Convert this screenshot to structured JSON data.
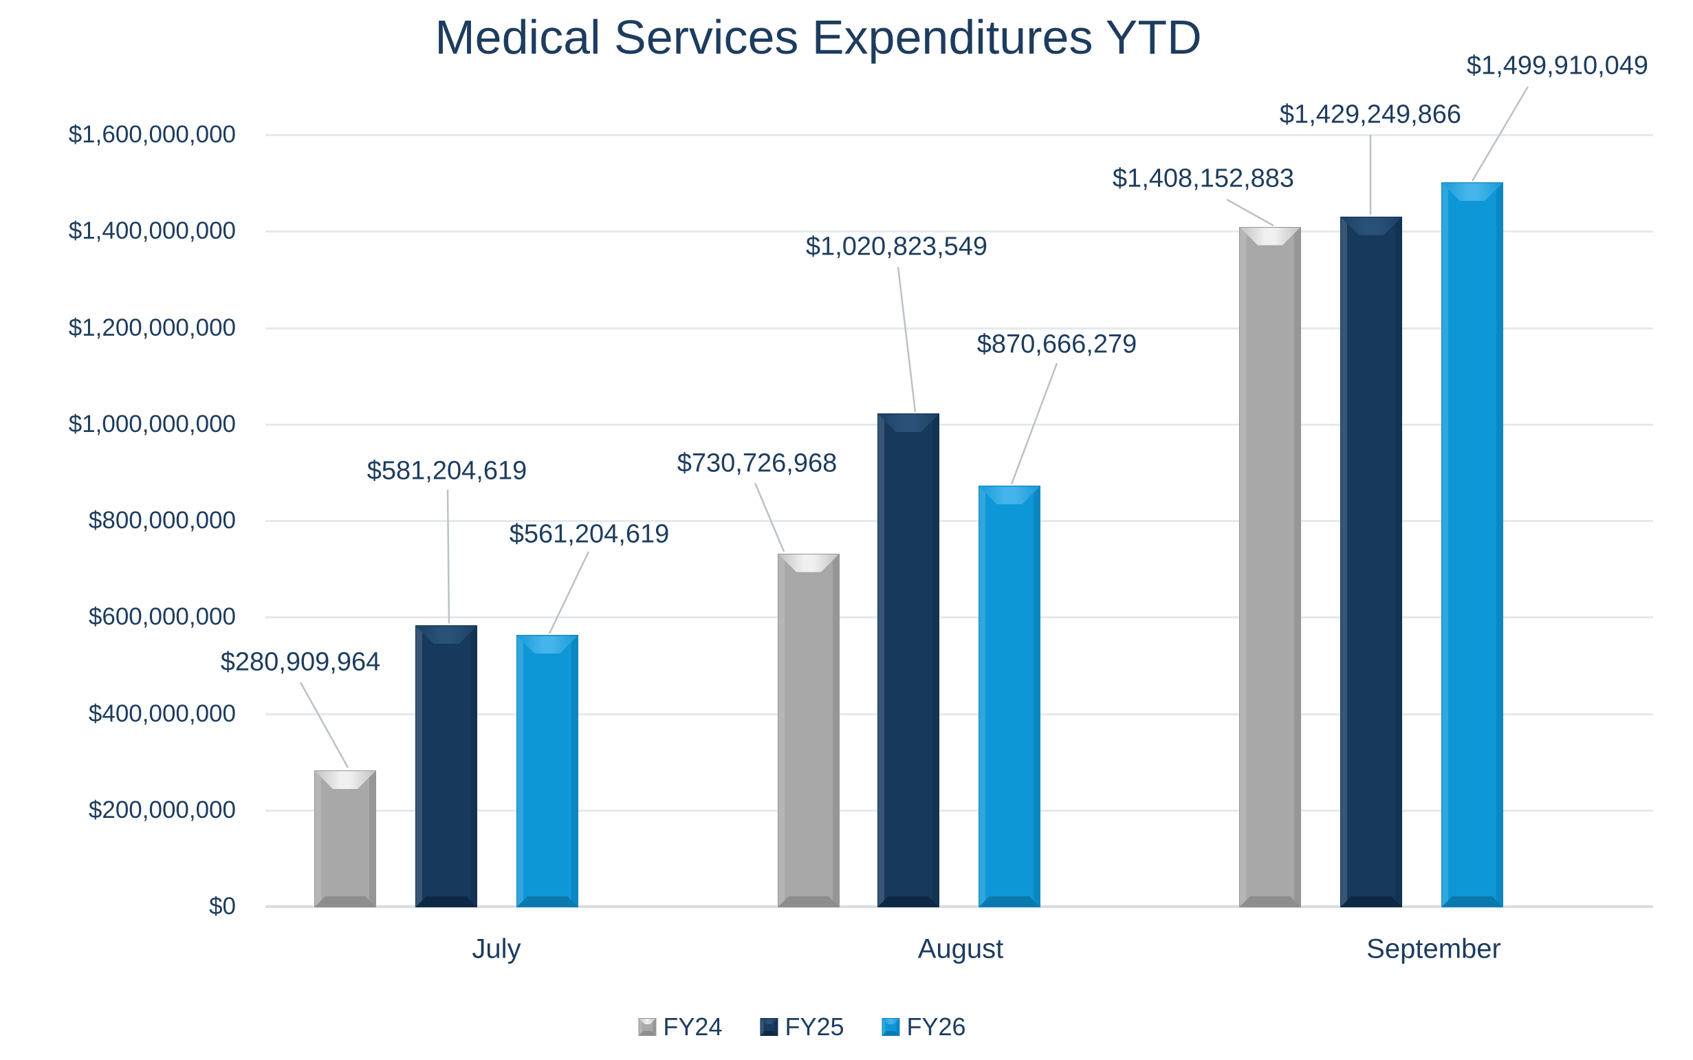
{
  "chart_data": {
    "type": "bar",
    "title": "Medical Services Expenditures YTD",
    "categories": [
      "July",
      "August",
      "September"
    ],
    "series": [
      {
        "name": "FY24",
        "color": "#a8a8a8",
        "bevel_mid": "#f0f0f0",
        "bevel_edge": "#c2c2c2",
        "bevel_bottom": "#8d8d8d",
        "edge": "#939393",
        "values": [
          280909964,
          730726968,
          1408152883
        ],
        "data_labels": [
          "$280,909,964",
          "$730,726,968",
          "$1,408,152,883"
        ]
      },
      {
        "name": "FY25",
        "color": "#16395c",
        "bevel_mid": "#2a5278",
        "bevel_edge": "#1d4166",
        "bevel_bottom": "#0d2945",
        "edge": "#102f4e",
        "values": [
          581204619,
          1020823549,
          1429249866
        ],
        "data_labels": [
          "$581,204,619",
          "$1,020,823,549",
          "$1,429,249,866"
        ]
      },
      {
        "name": "FY26",
        "color": "#0e97d7",
        "bevel_mid": "#45b4ea",
        "bevel_edge": "#1a9bd9",
        "bevel_bottom": "#0a79ad",
        "edge": "#0a85c0",
        "values": [
          561204619,
          870666279,
          1499910049
        ],
        "data_labels": [
          "$561,204,619",
          "$870,666,279",
          "$1,499,910,049"
        ]
      }
    ],
    "y_axis": {
      "min": 0,
      "max": 1600000000,
      "step": 200000000,
      "tick_labels": [
        "$0",
        "$200,000,000",
        "$400,000,000",
        "$600,000,000",
        "$800,000,000",
        "$1,000,000,000",
        "$1,200,000,000",
        "$1,400,000,000",
        "$1,600,000,000"
      ]
    },
    "legend": {
      "position": "bottom",
      "entries": [
        "FY24",
        "FY25",
        "FY26"
      ]
    },
    "grid": true,
    "colors": {
      "text": "#1d3c5e",
      "gridline": "#e5e9ec",
      "axis_line": "#d9dde2",
      "leader_line": "#b9c2ca",
      "background": "#ffffff"
    }
  }
}
